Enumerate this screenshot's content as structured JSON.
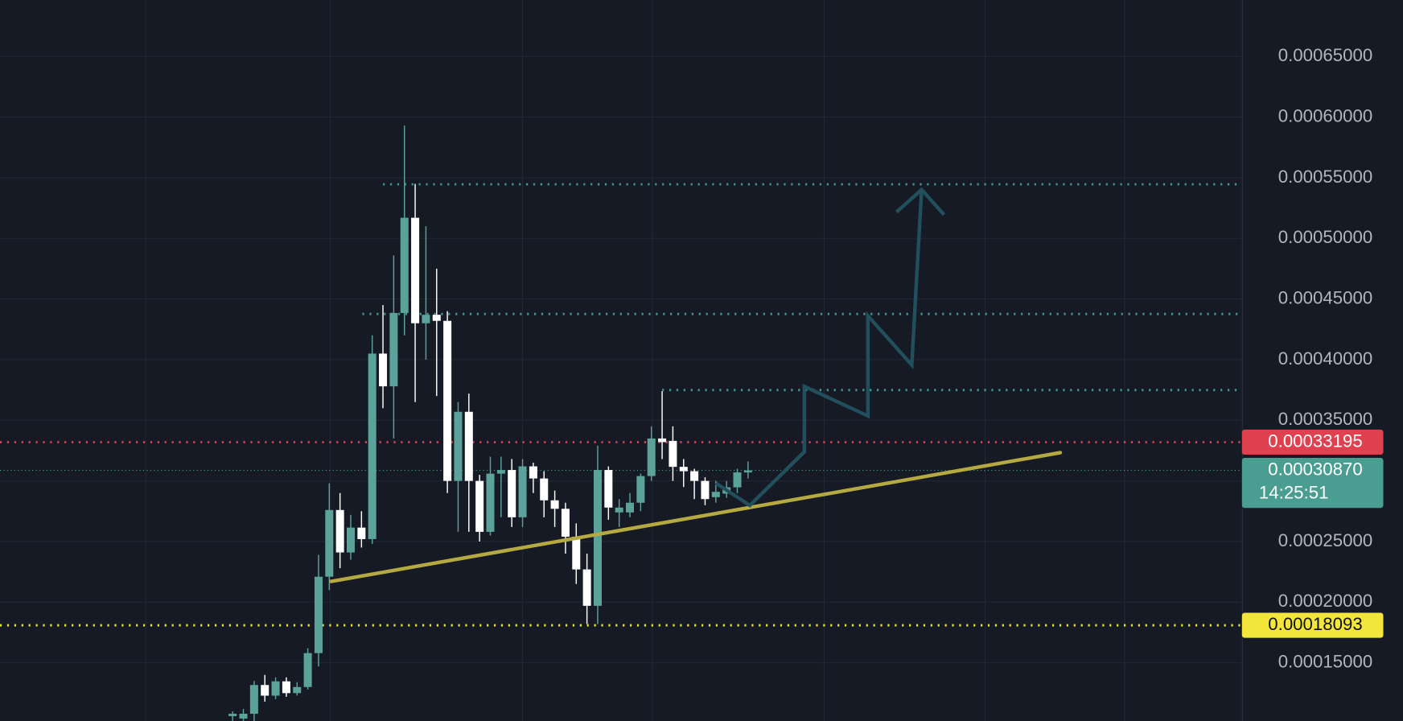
{
  "chart_data": {
    "type": "candlestick",
    "categories": [
      null,
      null,
      null,
      null,
      null,
      null,
      null,
      null,
      null,
      null,
      null,
      null,
      null,
      null,
      null,
      null,
      null,
      null,
      null,
      null,
      null,
      null,
      null,
      null,
      null,
      null,
      null,
      null,
      null,
      null,
      null,
      null,
      null,
      null,
      null,
      null,
      null,
      null,
      null,
      null,
      null,
      null,
      null,
      null,
      null,
      null,
      null,
      null,
      null
    ],
    "open": [
      0.000106,
      0.000104,
      0.000108,
      0.0001317,
      0.0001229,
      0.0001347,
      0.000125,
      0.00013,
      0.000158,
      0.000221,
      0.000276,
      0.000241,
      0.0002615,
      0.000252,
      0.000405,
      0.000378,
      0.0004385,
      0.000517,
      0.00043,
      0.000437,
      0.000432,
      0.0003,
      0.000357,
      0.0003,
      0.000258,
      0.000306,
      0.000309,
      0.00027,
      0.000312,
      0.000302,
      0.000284,
      0.000277,
      0.000254,
      0.000227,
      0.000197,
      0.000309,
      0.000274,
      0.000274,
      0.000282,
      0.000304,
      0.000335,
      0.000333,
      0.0003116,
      0.000308,
      0.0003,
      0.0002866,
      0.0002895,
      0.0002947,
      0.000307
    ],
    "high": [
      0.00011,
      0.000112,
      0.000135,
      0.00014,
      0.000138,
      0.000138,
      0.000134,
      0.000162,
      0.000239,
      0.000298,
      0.00029,
      0.000272,
      0.000275,
      0.00042,
      0.000445,
      0.000486,
      0.000593,
      0.000545,
      0.00051,
      0.000475,
      0.00044,
      0.000365,
      0.000372,
      0.000305,
      0.00032,
      0.00032,
      0.000318,
      0.000318,
      0.000315,
      0.000308,
      0.000292,
      0.000282,
      0.000265,
      0.00024,
      0.000329,
      0.000312,
      0.000285,
      0.00029,
      0.000306,
      0.000345,
      0.000374,
      0.000345,
      0.000318,
      0.00031,
      0.000303,
      0.0003,
      0.0003,
      0.00031,
      0.000316
    ],
    "low": [
      0.0001,
      0.0001,
      0.000102,
      0.000118,
      0.00012,
      0.000122,
      0.000123,
      0.000128,
      0.000147,
      0.00021,
      0.000228,
      0.000235,
      0.000245,
      0.000248,
      0.00036,
      0.000335,
      0.00042,
      0.000365,
      0.0004,
      0.00037,
      0.00029,
      0.000258,
      0.000258,
      0.00025,
      0.000255,
      0.00027,
      0.000262,
      0.000262,
      0.00029,
      0.00027,
      0.000262,
      0.00024,
      0.000215,
      0.000182,
      0.000182,
      0.000268,
      0.000262,
      0.00027,
      0.000275,
      0.0003,
      0.000318,
      0.0003,
      0.000295,
      0.000285,
      0.00028,
      0.000282,
      0.000286,
      0.00029,
      0.000302
    ],
    "close": [
      0.000108,
      0.000108,
      0.0001317,
      0.0001229,
      0.0001347,
      0.000125,
      0.00013,
      0.000158,
      0.000221,
      0.000276,
      0.000241,
      0.0002615,
      0.000252,
      0.000405,
      0.000378,
      0.0004385,
      0.000517,
      0.00043,
      0.000437,
      0.000432,
      0.0003,
      0.000357,
      0.0003,
      0.000258,
      0.000306,
      0.000309,
      0.00027,
      0.000312,
      0.000302,
      0.000284,
      0.000277,
      0.000254,
      0.000227,
      0.000197,
      0.000309,
      0.000278,
      0.000278,
      0.000282,
      0.000304,
      0.000335,
      0.000332,
      0.0003116,
      0.000308,
      0.0003,
      0.000285,
      0.000291,
      0.0002947,
      0.000307,
      0.0003087
    ],
    "up_color": "#5ba39a",
    "down_color": "#ffffff",
    "ylim": [
      0.000102,
      0.0006966
    ],
    "yticks": [
      {
        "value": 0.00015,
        "label": "0.00015000"
      },
      {
        "value": 0.0002,
        "label": "0.00020000"
      },
      {
        "value": 0.00025,
        "label": "0.00025000"
      },
      {
        "value": 0.0003,
        "label": "0.00030000"
      },
      {
        "value": 0.00035,
        "label": "0.00035000"
      },
      {
        "value": 0.0004,
        "label": "0.00040000"
      },
      {
        "value": 0.00045,
        "label": "0.00045000"
      },
      {
        "value": 0.0005,
        "label": "0.00050000"
      },
      {
        "value": 0.00055,
        "label": "0.00055000"
      },
      {
        "value": 0.0006,
        "label": "0.00060000"
      },
      {
        "value": 0.00065,
        "label": "0.00065000"
      }
    ],
    "grid": true,
    "price_lines": [
      {
        "value": 0.00033195,
        "label": "0.00033195",
        "color": "#e0414f",
        "text_color": "#ffffff"
      },
      {
        "value": 0.0003087,
        "label": "0.00030870",
        "color": "#4a9d91",
        "text_color": "#ffffff",
        "countdown": "14:25:51"
      },
      {
        "value": 0.00018093,
        "label": "0.00018093",
        "color": "#f2e63a",
        "text_color": "#111111"
      }
    ]
  }
}
